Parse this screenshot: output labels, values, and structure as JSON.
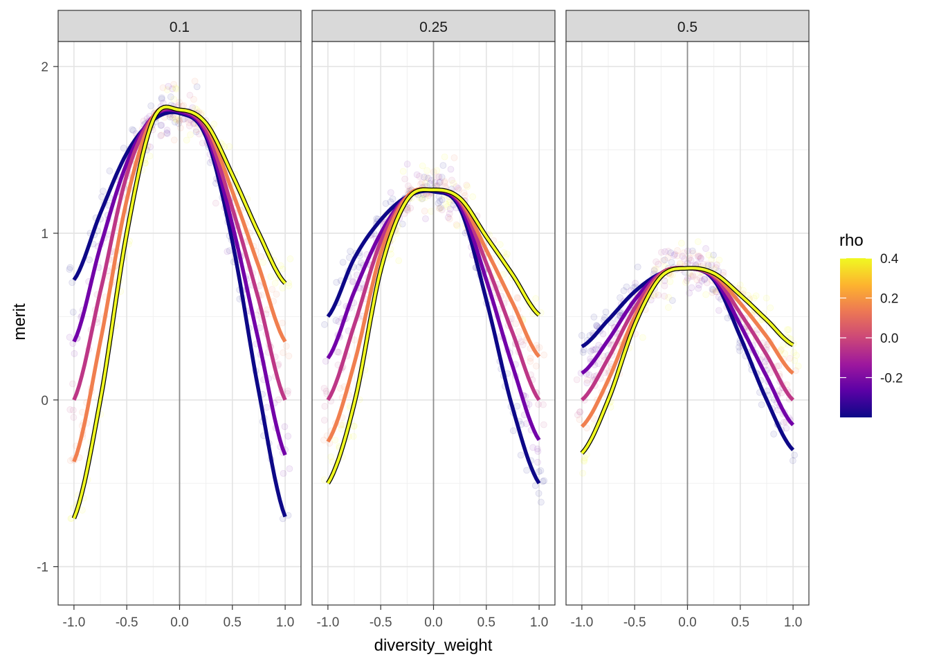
{
  "chart_data": {
    "type": "line",
    "xlabel": "diversity_weight",
    "ylabel": "merit",
    "xlim": [
      -1.15,
      1.15
    ],
    "ylim": [
      -1.23,
      2.15
    ],
    "x_ticks": [
      -1.0,
      -0.5,
      0.0,
      0.5,
      1.0
    ],
    "x_tick_labels": [
      "-1.0",
      "-0.5",
      "0.0",
      "0.5",
      "1.0"
    ],
    "y_ticks": [
      -1,
      0,
      1,
      2
    ],
    "y_tick_labels": [
      "-1",
      "0",
      "1",
      "2"
    ],
    "grid": true,
    "reference_line_x": 0,
    "legend": {
      "title": "rho",
      "type": "colorbar",
      "placement": "right",
      "tick_values": [
        0.4,
        0.2,
        0.0,
        -0.2
      ],
      "tick_labels": [
        "0.4",
        "0.2",
        "0.0",
        "-0.2"
      ],
      "range": [
        -0.4,
        0.4
      ],
      "colors": [
        "#0d0887",
        "#5c01a6",
        "#9c179e",
        "#cc4778",
        "#ed7953",
        "#fdb32f",
        "#f0f921"
      ]
    },
    "scatter_style": "semi-transparent points, colored by rho",
    "panels": [
      {
        "facet_label": "0.1",
        "series": [
          {
            "rho": -0.4,
            "color": "#0d0887",
            "x": [
              -1.0,
              -0.75,
              -0.5,
              -0.25,
              0.0,
              0.25,
              0.5,
              0.75,
              1.0
            ],
            "values": [
              0.72,
              1.12,
              1.48,
              1.68,
              1.72,
              1.58,
              0.95,
              0.05,
              -0.7
            ]
          },
          {
            "rho": -0.2,
            "color": "#7201a8",
            "x": [
              -1.0,
              -0.75,
              -0.5,
              -0.25,
              0.0,
              0.25,
              0.5,
              0.75,
              1.0
            ],
            "values": [
              0.35,
              0.92,
              1.42,
              1.7,
              1.73,
              1.6,
              1.05,
              0.35,
              -0.33
            ]
          },
          {
            "rho": 0.0,
            "color": "#bd3786",
            "x": [
              -1.0,
              -0.75,
              -0.5,
              -0.25,
              0.0,
              0.25,
              0.5,
              0.75,
              1.0
            ],
            "values": [
              0.0,
              0.65,
              1.35,
              1.7,
              1.74,
              1.62,
              1.15,
              0.6,
              0.0
            ]
          },
          {
            "rho": 0.2,
            "color": "#f07f4f",
            "x": [
              -1.0,
              -0.75,
              -0.5,
              -0.25,
              0.0,
              0.25,
              0.5,
              0.75,
              1.0
            ],
            "values": [
              -0.37,
              0.35,
              1.2,
              1.7,
              1.74,
              1.65,
              1.25,
              0.8,
              0.35
            ]
          },
          {
            "rho": 0.4,
            "color": "#f0f921",
            "x": [
              -1.0,
              -0.75,
              -0.5,
              -0.25,
              0.0,
              0.25,
              0.5,
              0.75,
              1.0
            ],
            "values": [
              -0.71,
              0.0,
              1.0,
              1.68,
              1.74,
              1.66,
              1.35,
              1.0,
              0.7
            ]
          }
        ]
      },
      {
        "facet_label": "0.25",
        "series": [
          {
            "rho": -0.4,
            "color": "#0d0887",
            "x": [
              -1.0,
              -0.75,
              -0.5,
              -0.25,
              0.0,
              0.25,
              0.5,
              0.75,
              1.0
            ],
            "values": [
              0.5,
              0.85,
              1.08,
              1.22,
              1.25,
              1.15,
              0.6,
              -0.05,
              -0.5
            ]
          },
          {
            "rho": -0.2,
            "color": "#7201a8",
            "x": [
              -1.0,
              -0.75,
              -0.5,
              -0.25,
              0.0,
              0.25,
              0.5,
              0.75,
              1.0
            ],
            "values": [
              0.25,
              0.65,
              1.0,
              1.22,
              1.26,
              1.17,
              0.72,
              0.2,
              -0.24
            ]
          },
          {
            "rho": 0.0,
            "color": "#bd3786",
            "x": [
              -1.0,
              -0.75,
              -0.5,
              -0.25,
              0.0,
              0.25,
              0.5,
              0.75,
              1.0
            ],
            "values": [
              0.0,
              0.45,
              0.95,
              1.22,
              1.26,
              1.19,
              0.82,
              0.4,
              0.0
            ]
          },
          {
            "rho": 0.2,
            "color": "#f07f4f",
            "x": [
              -1.0,
              -0.75,
              -0.5,
              -0.25,
              0.0,
              0.25,
              0.5,
              0.75,
              1.0
            ],
            "values": [
              -0.25,
              0.22,
              0.88,
              1.22,
              1.26,
              1.2,
              0.9,
              0.58,
              0.26
            ]
          },
          {
            "rho": 0.4,
            "color": "#f0f921",
            "x": [
              -1.0,
              -0.75,
              -0.5,
              -0.25,
              0.0,
              0.25,
              0.5,
              0.75,
              1.0
            ],
            "values": [
              -0.5,
              -0.02,
              0.78,
              1.2,
              1.26,
              1.21,
              0.98,
              0.75,
              0.51
            ]
          }
        ]
      },
      {
        "facet_label": "0.5",
        "series": [
          {
            "rho": -0.4,
            "color": "#0d0887",
            "x": [
              -1.0,
              -0.75,
              -0.5,
              -0.25,
              0.0,
              0.25,
              0.5,
              0.75,
              1.0
            ],
            "values": [
              0.32,
              0.48,
              0.65,
              0.76,
              0.79,
              0.72,
              0.38,
              0.0,
              -0.3
            ]
          },
          {
            "rho": -0.2,
            "color": "#7201a8",
            "x": [
              -1.0,
              -0.75,
              -0.5,
              -0.25,
              0.0,
              0.25,
              0.5,
              0.75,
              1.0
            ],
            "values": [
              0.16,
              0.36,
              0.6,
              0.76,
              0.79,
              0.73,
              0.45,
              0.14,
              -0.15
            ]
          },
          {
            "rho": 0.0,
            "color": "#bd3786",
            "x": [
              -1.0,
              -0.75,
              -0.5,
              -0.25,
              0.0,
              0.25,
              0.5,
              0.75,
              1.0
            ],
            "values": [
              0.0,
              0.25,
              0.55,
              0.76,
              0.79,
              0.74,
              0.52,
              0.27,
              0.0
            ]
          },
          {
            "rho": 0.2,
            "color": "#f07f4f",
            "x": [
              -1.0,
              -0.75,
              -0.5,
              -0.25,
              0.0,
              0.25,
              0.5,
              0.75,
              1.0
            ],
            "values": [
              -0.16,
              0.12,
              0.5,
              0.75,
              0.79,
              0.75,
              0.58,
              0.38,
              0.16
            ]
          },
          {
            "rho": 0.4,
            "color": "#f0f921",
            "x": [
              -1.0,
              -0.75,
              -0.5,
              -0.25,
              0.0,
              0.25,
              0.5,
              0.75,
              1.0
            ],
            "values": [
              -0.32,
              0.0,
              0.45,
              0.74,
              0.79,
              0.76,
              0.63,
              0.48,
              0.33
            ]
          }
        ]
      }
    ]
  }
}
